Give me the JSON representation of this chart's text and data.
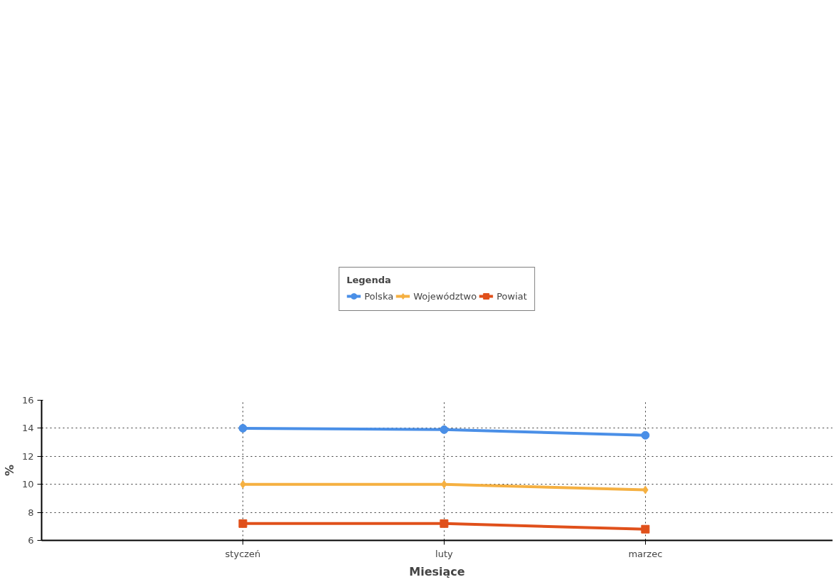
{
  "chart_data": {
    "type": "line",
    "xlabel": "Miesiące",
    "ylabel": "%",
    "legend_title": "Legenda",
    "categories": [
      "styczeń",
      "luty",
      "marzec"
    ],
    "series": [
      {
        "name": "Polska",
        "color": "#4a8fe7",
        "marker": "circle",
        "values": [
          14.0,
          13.9,
          13.5
        ]
      },
      {
        "name": "Województwo",
        "color": "#f5b041",
        "marker": "diamond",
        "values": [
          10.0,
          10.0,
          9.6
        ]
      },
      {
        "name": "Powiat",
        "color": "#e0501b",
        "marker": "square",
        "values": [
          7.2,
          7.2,
          6.8
        ]
      }
    ],
    "ylim": [
      6,
      16
    ],
    "yticks": [
      6,
      8,
      10,
      12,
      14,
      16
    ],
    "grid": true,
    "legend": "top",
    "line_style": "solid"
  }
}
